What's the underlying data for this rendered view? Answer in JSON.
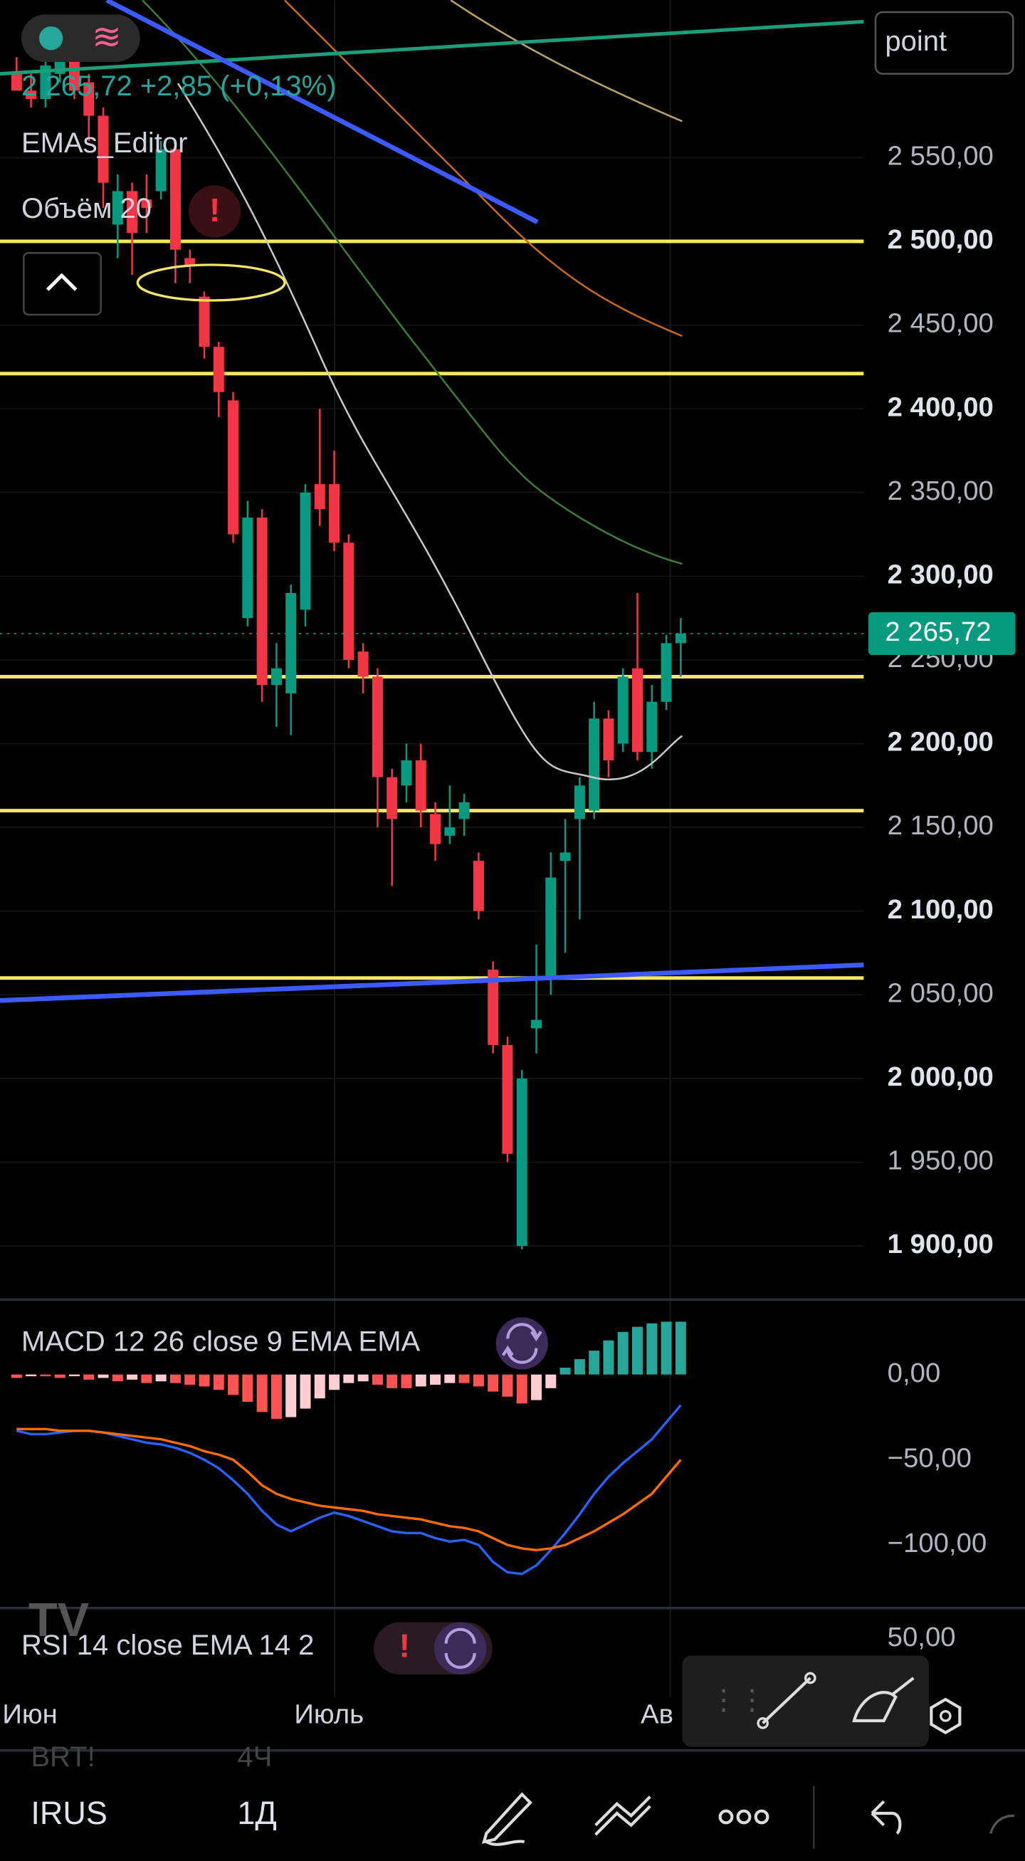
{
  "header": {
    "symbol_search": "point",
    "price_line": "2 265,72 +2,85 (+0,13%)",
    "indicators": [
      "EMAs_Editor",
      "Объём 20"
    ]
  },
  "chart_data": {
    "type": "candlestick",
    "open": [
      2600,
      2590,
      2585,
      2600,
      2610,
      2595,
      2575,
      2510,
      2530,
      2525,
      2530,
      2555,
      2490,
      2467,
      2437,
      2405,
      2275,
      2335,
      2235,
      2230,
      2280,
      2355,
      2355,
      2320,
      2255,
      2240,
      2180,
      2175,
      2190,
      2158,
      2145,
      2155,
      2130,
      2065,
      2020,
      1900,
      2030,
      2060,
      2130,
      2155,
      2160,
      2215,
      2200,
      2245,
      2195,
      2225,
      2260
    ],
    "high": [
      2610,
      2600,
      2625,
      2630,
      2615,
      2600,
      2580,
      2540,
      2535,
      2540,
      2560,
      2560,
      2495,
      2470,
      2440,
      2410,
      2345,
      2340,
      2260,
      2295,
      2355,
      2400,
      2375,
      2325,
      2260,
      2245,
      2185,
      2200,
      2200,
      2165,
      2175,
      2170,
      2135,
      2070,
      2025,
      2005,
      2080,
      2135,
      2155,
      2180,
      2225,
      2220,
      2245,
      2290,
      2235,
      2265,
      2275
    ],
    "low": [
      2590,
      2580,
      2580,
      2595,
      2585,
      2560,
      2520,
      2490,
      2480,
      2505,
      2525,
      2475,
      2475,
      2430,
      2395,
      2320,
      2270,
      2225,
      2210,
      2205,
      2270,
      2330,
      2315,
      2245,
      2230,
      2150,
      2115,
      2165,
      2150,
      2130,
      2140,
      2145,
      2095,
      2015,
      1950,
      1898,
      2015,
      2050,
      2075,
      2095,
      2155,
      2180,
      2195,
      2190,
      2185,
      2220,
      2240
    ],
    "close": [
      2590,
      2585,
      2605,
      2610,
      2590,
      2575,
      2535,
      2530,
      2505,
      2520,
      2555,
      2495,
      2485,
      2437,
      2410,
      2325,
      2335,
      2235,
      2245,
      2290,
      2350,
      2340,
      2320,
      2250,
      2240,
      2180,
      2155,
      2190,
      2160,
      2140,
      2150,
      2165,
      2100,
      2020,
      1955,
      2000,
      2035,
      2120,
      2135,
      2175,
      2215,
      2190,
      2240,
      2195,
      2225,
      2260,
      2265.72
    ],
    "up_color": "#089981",
    "down_color": "#f23645",
    "ylim": [
      1868,
      2644
    ],
    "yticks": [
      {
        "value": 2550,
        "label": "2 550,00"
      },
      {
        "value": 2500,
        "label": "2 500,00"
      },
      {
        "value": 2450,
        "label": "2 450,00"
      },
      {
        "value": 2400,
        "label": "2 400,00"
      },
      {
        "value": 2350,
        "label": "2 350,00"
      },
      {
        "value": 2300,
        "label": "2 300,00"
      },
      {
        "value": 2250,
        "label": "2 250,00"
      },
      {
        "value": 2200,
        "label": "2 200,00"
      },
      {
        "value": 2150,
        "label": "2 150,00"
      },
      {
        "value": 2100,
        "label": "2 100,00"
      },
      {
        "value": 2050,
        "label": "2 050,00"
      },
      {
        "value": 2000,
        "label": "2 000,00"
      },
      {
        "value": 1950,
        "label": "1 950,00"
      },
      {
        "value": 1900,
        "label": "1 900,00"
      }
    ],
    "levels": [
      2500,
      2421,
      2240,
      2160,
      2060
    ],
    "level_color": "#f5e663",
    "last_price": {
      "value": 2265.72,
      "label": "2 265,72"
    },
    "month_labels": [
      "Июн",
      "Июль",
      "Ав"
    ]
  },
  "macd": {
    "title": "MACD 12 26 close 9 EMA EMA",
    "histogram": [
      -2,
      -1,
      -1,
      -2,
      -1,
      -3,
      -2,
      -4,
      -3,
      -5,
      -4,
      -5,
      -6,
      -7,
      -9,
      -12,
      -16,
      -22,
      -26,
      -25,
      -20,
      -14,
      -9,
      -5,
      -4,
      -6,
      -8,
      -8,
      -7,
      -6,
      -5,
      -5,
      -7,
      -10,
      -13,
      -17,
      -15,
      -8,
      4,
      9,
      14,
      20,
      25,
      28,
      30,
      31,
      31
    ],
    "macd_line": {
      "color": "#2962ff",
      "values": [
        -33,
        -35,
        -35,
        -34,
        -33,
        -33,
        -34,
        -36,
        -38,
        -40,
        -41,
        -43,
        -46,
        -50,
        -55,
        -62,
        -70,
        -80,
        -88,
        -92,
        -88,
        -84,
        -81,
        -83,
        -86,
        -89,
        -92,
        -93,
        -93,
        -96,
        -98,
        -97,
        -100,
        -110,
        -116,
        -117,
        -112,
        -103,
        -93,
        -82,
        -70,
        -60,
        -52,
        -45,
        -38,
        -28,
        -18
      ]
    },
    "signal_line": {
      "color": "#ff6d00",
      "values": [
        -32,
        -32,
        -32,
        -33,
        -33,
        -33,
        -34,
        -35,
        -36,
        -37,
        -38,
        -40,
        -42,
        -45,
        -47,
        -50,
        -57,
        -65,
        -70,
        -73,
        -75,
        -77,
        -78,
        -79,
        -80,
        -82,
        -83,
        -84,
        -85,
        -87,
        -89,
        -90,
        -92,
        -96,
        -100,
        -102,
        -103,
        -102,
        -100,
        -96,
        -92,
        -87,
        -82,
        -76,
        -70,
        -60,
        -50
      ]
    },
    "ylim": [
      -137,
      44
    ],
    "yticks": [
      {
        "value": 0,
        "label": "0,00"
      },
      {
        "value": -50,
        "label": "−50,00"
      },
      {
        "value": -100,
        "label": "−100,00"
      }
    ]
  },
  "rsi": {
    "title": "RSI 14 close EMA 14 2",
    "yticks": [
      {
        "value": 50,
        "label": "50,00"
      }
    ]
  },
  "bottom_bar": {
    "symbol": "IRUS",
    "interval": "1Д",
    "prev_symbol": "BRT!",
    "prev_interval": "4Ч"
  }
}
